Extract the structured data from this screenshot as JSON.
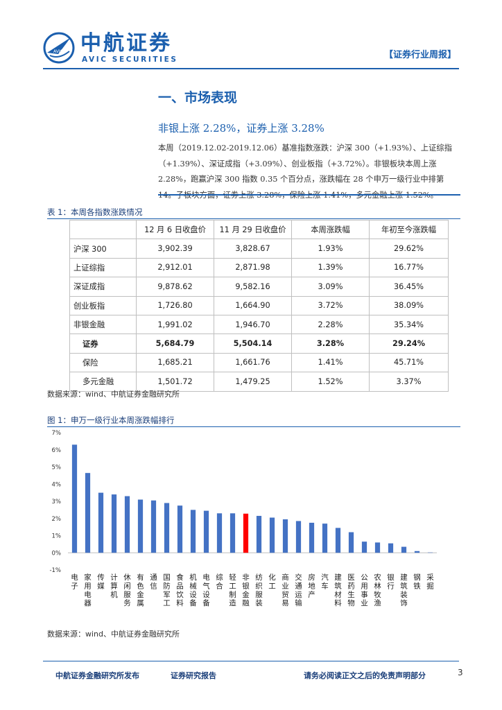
{
  "header": {
    "logo_cn": "中航证券",
    "logo_en": "AVIC SECURITIES",
    "logo_mark_text": "AVIC",
    "tag": "【证券行业周报】",
    "brand_color": "#1b5fae"
  },
  "section": {
    "title": "一、市场表现",
    "subtitle": "非银上涨 2.28%，证券上涨 3.28%",
    "paragraph": "本周（2019.12.02-2019.12.06）基准指数涨跌：沪深 300（+1.93%）、上证综指（+1.39%）、深证成指（+3.09%）、创业板指（+3.72%）。非银板块本周上涨 2.28%，跑赢沪深 300 指数 0.35 个百分点，涨跌幅在 28 个申万一级行业中排第 14。子板块方面，证券上涨 3.28%，保险上涨 1.41%，多元金融上涨 1.52%。"
  },
  "table": {
    "caption": "表 1：本周各指数涨跌情况",
    "headers": [
      "",
      "12 月 6 日收盘价",
      "11 月 29 日收盘价",
      "本周涨跌幅",
      "年初至今涨跌幅"
    ],
    "rows": [
      [
        "沪深 300",
        "3,902.39",
        "3,828.67",
        "1.93%",
        "29.62%"
      ],
      [
        "上证综指",
        "2,912.01",
        "2,871.98",
        "1.39%",
        "16.77%"
      ],
      [
        "深证成指",
        "9,878.62",
        "9,582.16",
        "3.09%",
        "36.45%"
      ],
      [
        "创业板指",
        "1,726.80",
        "1,664.90",
        "3.72%",
        "38.09%"
      ],
      [
        "非银金融",
        "1,991.02",
        "1,946.70",
        "2.28%",
        "35.34%"
      ],
      [
        "证券",
        "5,684.79",
        "5,504.14",
        "3.28%",
        "29.24%"
      ],
      [
        "保险",
        "1,685.21",
        "1,661.76",
        "1.41%",
        "45.71%"
      ],
      [
        "多元金融",
        "1,501.72",
        "1,479.25",
        "1.52%",
        "3.37%"
      ]
    ],
    "source": "数据来源：wind、中航证券金融研究所"
  },
  "figure": {
    "caption": "图 1：申万一级行业本周涨跌幅排行",
    "source": "数据来源：wind、中航证券金融研究所"
  },
  "chart_data": {
    "type": "bar",
    "categories": [
      "电子",
      "家用电器",
      "传媒",
      "计算机",
      "休闲服务",
      "有色金属",
      "通信",
      "国防军工",
      "食品饮料",
      "机械设备",
      "电气设备",
      "综合",
      "轻工制造",
      "非银金融",
      "纺织服装",
      "化工",
      "商业贸易",
      "交通运输",
      "房地产",
      "汽车",
      "建筑材料",
      "医药生物",
      "公用事业",
      "农林牧渔",
      "银行",
      "建筑装饰",
      "钢铁",
      "采掘"
    ],
    "values": [
      6.3,
      4.65,
      3.5,
      3.4,
      3.3,
      3.1,
      3.05,
      2.9,
      2.75,
      2.5,
      2.45,
      2.3,
      2.3,
      2.28,
      2.15,
      2.05,
      1.95,
      1.85,
      1.75,
      1.7,
      1.45,
      1.2,
      0.65,
      0.6,
      0.55,
      0.35,
      0.1,
      0.02
    ],
    "highlight_category": "非银金融",
    "bar_color": "#4472c4",
    "highlight_color": "#ff0000",
    "ylim": [
      -1,
      7
    ],
    "yticks": [
      "-1%",
      "0%",
      "1%",
      "2%",
      "3%",
      "4%",
      "5%",
      "6%",
      "7%"
    ],
    "ytick_values": [
      -1,
      0,
      1,
      2,
      3,
      4,
      5,
      6,
      7
    ],
    "grid": false
  },
  "footer": {
    "left": "中航证券金融研究所发布",
    "mid": "证券研究报告",
    "right": "请务必阅读正文之后的免责声明部分",
    "page": "3"
  }
}
